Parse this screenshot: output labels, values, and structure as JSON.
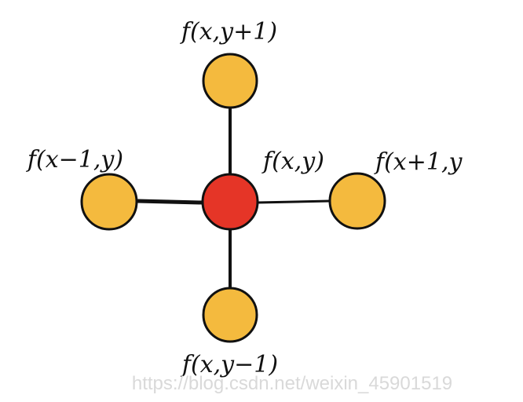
{
  "diagram": {
    "colors": {
      "center_node": "#e53527",
      "neighbor_node": "#f4ba3e",
      "edge": "#111111"
    },
    "nodes": {
      "center": {
        "label": "f(x,y)"
      },
      "top": {
        "label": "f(x,y+1)"
      },
      "left": {
        "label": "f(x−1,y)"
      },
      "right": {
        "label": "f(x+1,y"
      },
      "bottom": {
        "label": "f(x,y−1)"
      }
    }
  },
  "watermark": {
    "text": "https://blog.csdn.net/weixin_45901519"
  }
}
